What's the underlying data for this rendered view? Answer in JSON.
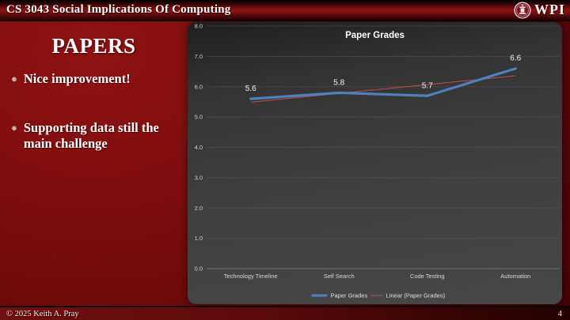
{
  "header": {
    "course_title": "CS 3043 Social Implications Of Computing",
    "logo_text": "WPI"
  },
  "slide": {
    "title": "PAPERS",
    "bullets": [
      "Nice improvement!",
      "Supporting data still the main challenge"
    ]
  },
  "footer": {
    "copyright": "© 2025 Keith A. Pray",
    "page_number": "4"
  },
  "colors": {
    "slide_red": "#7c0d0d",
    "chart_bg": "#3f3f3f",
    "series_blue": "#4f81bd",
    "trend_red": "#c0504d",
    "grid_gray": "#606060"
  },
  "chart_data": {
    "type": "line",
    "title": "Paper Grades",
    "categories": [
      "Technology Timeline",
      "Self Search",
      "Code Testing",
      "Automation"
    ],
    "series": [
      {
        "name": "Paper Grades",
        "color": "#4f81bd",
        "values": [
          5.6,
          5.8,
          5.7,
          6.6
        ]
      }
    ],
    "trendline": {
      "name": "Linear (Paper Grades)",
      "color": "#c0504d"
    },
    "data_labels": [
      "5.6",
      "5.8",
      "5.7",
      "6.6"
    ],
    "ylim": [
      0,
      8
    ],
    "ytick_step": 1,
    "ytick_labels": [
      "0.0",
      "1.0",
      "2.0",
      "3.0",
      "4.0",
      "5.0",
      "6.0",
      "7.0",
      "8.0"
    ],
    "xlabel": "",
    "ylabel": "",
    "grid": true,
    "legend_position": "bottom"
  }
}
